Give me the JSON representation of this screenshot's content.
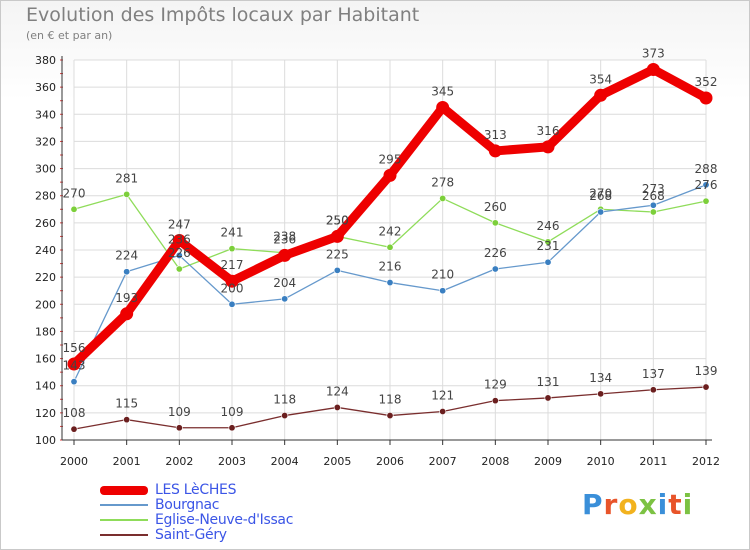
{
  "header": {
    "title": "Evolution des Impôts locaux par Habitant",
    "subtitle": "(en € et par an)"
  },
  "logo": {
    "text": "Proxiti",
    "colors": [
      "#3a8fd9",
      "#e8542a",
      "#f2b21e",
      "#7cc243",
      "#3a8fd9",
      "#e8542a",
      "#7cc243"
    ]
  },
  "colors": {
    "grid": "#dcdcdc",
    "axis": "#333333",
    "tick_text": "#222222",
    "value_text": "#444444",
    "legend_text": "#3b55e6"
  },
  "chart_data": {
    "type": "line",
    "x": [
      "2000",
      "2001",
      "2002",
      "2003",
      "2004",
      "2005",
      "2006",
      "2007",
      "2008",
      "2009",
      "2010",
      "2011",
      "2012"
    ],
    "ylim": [
      100,
      380
    ],
    "yticks": [
      100,
      120,
      140,
      160,
      180,
      200,
      220,
      240,
      260,
      280,
      300,
      320,
      340,
      360,
      380
    ],
    "grid": true,
    "legend_position": "bottom-left",
    "series": [
      {
        "name": "Saint-Géry",
        "color": "#7a2e2e",
        "marker": "#6b1f1f",
        "width": "thin",
        "values": [
          108,
          115,
          109,
          109,
          118,
          124,
          118,
          121,
          129,
          131,
          134,
          137,
          139
        ]
      },
      {
        "name": "Eglise-Neuve-d'Issac",
        "color": "#8fdc5a",
        "marker": "#7ccf3a",
        "width": "thin",
        "values": [
          270,
          281,
          226,
          241,
          238,
          250,
          242,
          278,
          260,
          246,
          270,
          268,
          276
        ]
      },
      {
        "name": "Bourgnac",
        "color": "#6699cc",
        "marker": "#3a7fc1",
        "width": "thin",
        "values": [
          143,
          224,
          236,
          200,
          204,
          225,
          216,
          210,
          226,
          231,
          268,
          273,
          288
        ]
      },
      {
        "name": "LES LèCHES",
        "color": "#ee0000",
        "marker": "#ee0000",
        "width": "thick",
        "values": [
          156,
          193,
          247,
          217,
          236,
          250,
          295,
          345,
          313,
          316,
          354,
          373,
          352
        ]
      }
    ],
    "legend_order": [
      "LES LèCHES",
      "Bourgnac",
      "Eglise-Neuve-d'Issac",
      "Saint-Géry"
    ]
  }
}
